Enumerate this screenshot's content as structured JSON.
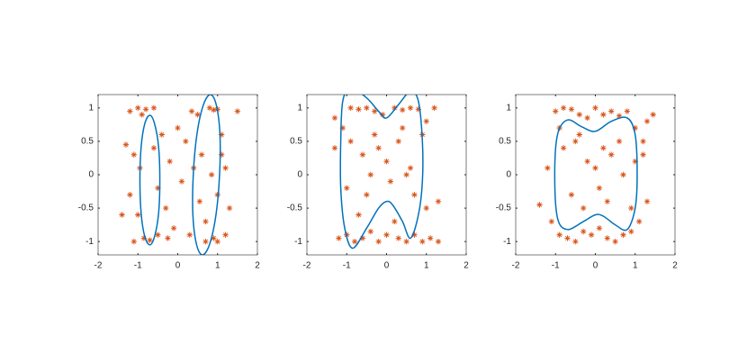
{
  "chart_data": [
    {
      "type": "scatter",
      "xlim": [
        -2,
        2
      ],
      "ylim": [
        -1.2,
        1.2
      ],
      "xticks": [
        -2,
        -1,
        0,
        1,
        2
      ],
      "yticks": [
        -1,
        -0.5,
        0,
        0.5,
        1
      ],
      "series": [
        {
          "mode": "markers",
          "color": "#D95319",
          "x": [
            -1.2,
            -1.0,
            -0.8,
            -0.6,
            -0.9,
            -1.3,
            -1.1,
            -0.95,
            -1.2,
            -1.4,
            -1.0,
            -0.85,
            -1.1,
            -0.7,
            -0.5,
            -0.6,
            -0.4,
            -0.5,
            -0.3,
            -0.2,
            -0.1,
            0.0,
            0.1,
            0.2,
            0.3,
            0.35,
            0.5,
            0.6,
            0.55,
            0.7,
            0.8,
            0.9,
            1.0,
            0.85,
            1.0,
            1.1,
            1.2,
            1.3,
            1.5,
            1.2,
            0.9,
            0.7,
            1.0,
            0.4,
            -0.25,
            1.1
          ],
          "y": [
            0.95,
            1.0,
            0.98,
            1.0,
            0.9,
            0.45,
            0.3,
            0.1,
            -0.3,
            -0.6,
            -0.6,
            -0.95,
            -1.0,
            -0.98,
            -0.9,
            0.4,
            0.6,
            -0.2,
            -0.5,
            0.2,
            -0.8,
            0.7,
            -0.1,
            0.5,
            -0.9,
            0.95,
            0.9,
            0.3,
            -0.4,
            -0.7,
            1.0,
            0.97,
            0.98,
            0.0,
            -0.3,
            0.6,
            0.1,
            -0.5,
            0.95,
            -0.9,
            -0.95,
            -1.0,
            -1.0,
            0.1,
            -0.95,
            0.3
          ]
        },
        {
          "mode": "lines",
          "color": "#0072BD",
          "x": [
            -0.45,
            -0.48,
            -0.58,
            -0.7,
            -0.83,
            -0.92,
            -0.95,
            -0.92,
            -0.83,
            -0.7,
            -0.58,
            -0.48,
            -0.45
          ],
          "y": [
            -0.08,
            0.41,
            0.76,
            0.89,
            0.76,
            0.41,
            -0.08,
            -0.57,
            -0.92,
            -1.05,
            -0.92,
            -0.57,
            -0.08
          ]
        },
        {
          "mode": "lines",
          "color": "#0072BD",
          "x": [
            1.05,
            1.06,
            0.97,
            0.82,
            0.64,
            0.48,
            0.39,
            0.38,
            0.47,
            0.62,
            0.8,
            0.96,
            1.05
          ],
          "y": [
            0,
            0.6,
            1.04,
            1.2,
            1.04,
            0.6,
            0,
            -0.6,
            -1.04,
            -1.2,
            -1.04,
            -0.6,
            0
          ]
        }
      ]
    },
    {
      "type": "scatter",
      "xlim": [
        -2,
        2
      ],
      "ylim": [
        -1.2,
        1.2
      ],
      "xticks": [
        -2,
        -1,
        0,
        1,
        2
      ],
      "yticks": [
        -1,
        -0.5,
        0,
        0.5,
        1
      ],
      "series": [
        {
          "mode": "markers",
          "color": "#D95319",
          "x": [
            -1.3,
            -1.1,
            -0.9,
            -0.7,
            -0.5,
            -0.3,
            -0.1,
            0.2,
            0.4,
            0.6,
            0.8,
            1.0,
            1.2,
            -1.2,
            -1.0,
            -0.8,
            -0.6,
            -0.4,
            -0.2,
            0.0,
            0.3,
            0.5,
            0.7,
            0.9,
            1.1,
            1.3,
            -0.9,
            -0.6,
            -0.3,
            0.0,
            0.3,
            0.6,
            0.9,
            -1.0,
            -0.5,
            0.1,
            0.5,
            1.0,
            -0.7,
            -0.2,
            0.2,
            0.7,
            -1.3,
            1.3,
            -0.4,
            0.4
          ],
          "y": [
            0.85,
            0.7,
            1.0,
            0.98,
            1.0,
            0.95,
            0.9,
            1.0,
            0.97,
            1.0,
            0.98,
            0.8,
            1.0,
            -0.95,
            -0.9,
            -1.0,
            -0.95,
            -0.85,
            -1.0,
            -0.9,
            -0.95,
            -1.0,
            -0.9,
            -1.0,
            -0.95,
            -1.0,
            0.5,
            0.3,
            0.6,
            0.2,
            0.5,
            0.1,
            0.6,
            -0.2,
            -0.3,
            -0.1,
            0.0,
            -0.5,
            -0.6,
            0.4,
            -0.7,
            -0.3,
            0.4,
            -0.4,
            0.0,
            0.7
          ]
        },
        {
          "mode": "lines",
          "color": "#0072BD",
          "x": [
            0,
            0.3,
            0.6,
            0.8,
            0.9,
            0.9,
            0.8,
            0.6,
            0.4,
            0.15,
            0,
            -0.2,
            -0.5,
            -0.85,
            -1.05,
            -1.15,
            -1.15,
            -1.1,
            -0.9,
            -0.5,
            -0.2,
            0
          ],
          "y": [
            0.85,
            1.05,
            1.25,
            1.1,
            0.5,
            -0.1,
            -0.6,
            -0.95,
            -0.7,
            -0.45,
            -0.4,
            -0.5,
            -0.8,
            -1.1,
            -0.8,
            -0.2,
            0.5,
            1.1,
            1.3,
            1.15,
            0.95,
            0.85
          ]
        }
      ]
    },
    {
      "type": "scatter",
      "xlim": [
        -2,
        2
      ],
      "ylim": [
        -1.2,
        1.2
      ],
      "xticks": [
        -2,
        -1,
        0,
        1,
        2
      ],
      "yticks": [
        -1,
        -0.5,
        0,
        0.5,
        1
      ],
      "series": [
        {
          "mode": "markers",
          "color": "#D95319",
          "x": [
            -1.0,
            -0.8,
            -0.6,
            -0.4,
            -0.2,
            0.0,
            0.2,
            0.4,
            0.6,
            0.8,
            1.0,
            1.2,
            1.45,
            -1.1,
            -0.9,
            -0.7,
            -0.5,
            -0.3,
            -0.1,
            0.1,
            0.3,
            0.5,
            0.7,
            0.9,
            1.1,
            1.3,
            -1.4,
            -1.2,
            -0.8,
            -0.5,
            -0.2,
            0.1,
            0.4,
            0.7,
            1.0,
            1.2,
            -0.6,
            -0.3,
            0.0,
            0.3,
            0.6,
            -0.9,
            0.9,
            -0.4,
            0.2,
            1.3
          ],
          "y": [
            0.95,
            1.0,
            0.98,
            0.9,
            0.85,
            1.0,
            0.9,
            0.95,
            0.88,
            0.95,
            0.7,
            0.5,
            0.9,
            -0.7,
            -0.9,
            -0.95,
            -1.0,
            -0.85,
            -0.9,
            -0.8,
            -0.95,
            -1.0,
            -0.9,
            -0.85,
            -0.7,
            -0.4,
            -0.45,
            0.1,
            0.4,
            0.5,
            0.2,
            -0.2,
            0.3,
            0.0,
            0.2,
            0.3,
            -0.3,
            -0.5,
            0.1,
            -0.4,
            0.5,
            0.7,
            -0.5,
            0.6,
            0.4,
            0.8
          ]
        },
        {
          "mode": "lines",
          "color": "#0072BD",
          "x": [
            0,
            0.4,
            0.8,
            1.0,
            1.05,
            1.0,
            0.8,
            0.5,
            0.2,
            0,
            -0.3,
            -0.7,
            -0.95,
            -1.02,
            -0.95,
            -0.7,
            -0.35,
            0
          ],
          "y": [
            0.65,
            0.8,
            0.85,
            0.6,
            0,
            -0.5,
            -0.82,
            -0.75,
            -0.62,
            -0.6,
            -0.7,
            -0.82,
            -0.65,
            0,
            0.6,
            0.82,
            0.72,
            0.65
          ]
        }
      ]
    }
  ]
}
